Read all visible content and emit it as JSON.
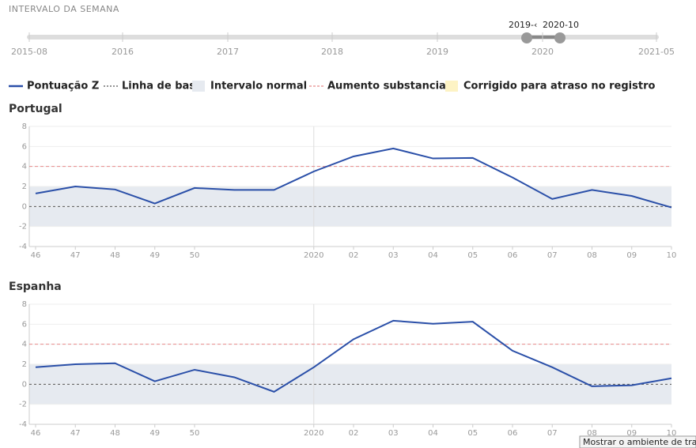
{
  "header": {
    "title": "INTERVALO DA SEMANA"
  },
  "slider": {
    "labels": [
      "2015-08",
      "2016",
      "2017",
      "2018",
      "2019",
      "2020",
      "2021-05"
    ],
    "start_label": "2019-‹",
    "end_label": "2020-10"
  },
  "legend": [
    {
      "label": "Pontuação Z",
      "color": "#2a4fa8",
      "style": "line"
    },
    {
      "label": "Linha de base",
      "color": "#555555",
      "style": "dotted"
    },
    {
      "label": "Intervalo normal",
      "color": "#e6eaf0",
      "style": "box"
    },
    {
      "label": "Aumento substancial",
      "color": "#e88a8a",
      "style": "dashed"
    },
    {
      "label": "Corrigido para atraso no registro",
      "color": "#fdf3c4",
      "style": "box"
    }
  ],
  "chart_data": [
    {
      "type": "line",
      "title": "Portugal",
      "categories": [
        "46",
        "47",
        "48",
        "49",
        "50",
        null,
        null,
        "2020",
        "02",
        "03",
        "04",
        "05",
        "06",
        "07",
        "08",
        "09",
        "10"
      ],
      "series": [
        {
          "name": "Pontuação Z",
          "color": "#2a4fa8",
          "values": [
            1.3,
            2.0,
            1.7,
            0.3,
            1.85,
            1.65,
            1.65,
            3.5,
            5.0,
            5.8,
            4.8,
            4.85,
            2.9,
            0.75,
            1.65,
            1.05,
            -0.1
          ]
        }
      ],
      "ylim": [
        -4,
        8
      ],
      "yticks": [
        8,
        6,
        4,
        2,
        0,
        -2,
        -4
      ],
      "grid": true,
      "normal_range": [
        -2,
        2
      ],
      "baseline": 0,
      "threshold": 4
    },
    {
      "type": "line",
      "title": "Espanha",
      "categories": [
        "46",
        "47",
        "48",
        "49",
        "50",
        null,
        null,
        "2020",
        "02",
        "03",
        "04",
        "05",
        "06",
        "07",
        "08",
        "09",
        "10"
      ],
      "series": [
        {
          "name": "Pontuação Z",
          "color": "#2a4fa8",
          "values": [
            1.7,
            2.0,
            2.1,
            0.3,
            1.45,
            0.7,
            -0.75,
            1.7,
            4.5,
            6.35,
            6.05,
            6.25,
            3.35,
            1.7,
            -0.2,
            -0.1,
            0.6
          ]
        }
      ],
      "ylim": [
        -4,
        8
      ],
      "yticks": [
        8,
        6,
        4,
        2,
        0,
        -2,
        -4
      ],
      "grid": true,
      "normal_range": [
        -2,
        2
      ],
      "baseline": 0,
      "threshold": 4
    }
  ],
  "tooltip": "Mostrar o ambiente de tra"
}
